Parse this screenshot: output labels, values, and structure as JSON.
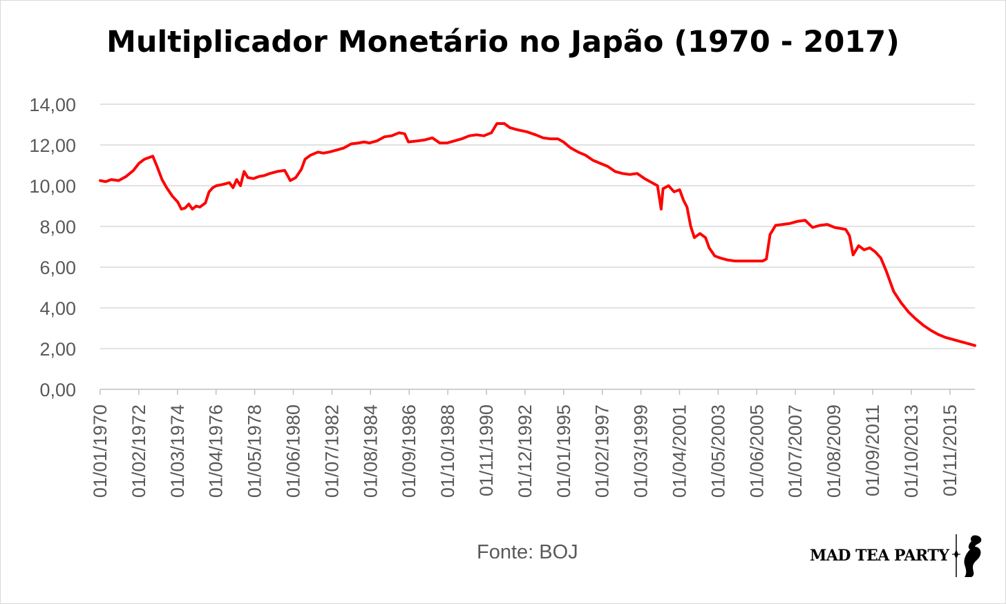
{
  "chart_data": {
    "type": "line",
    "title": "Multiplicador Monetário no Japão (1970 - 2017)",
    "source": "Fonte: BOJ",
    "ylim": [
      0,
      14
    ],
    "ytick_labels": [
      "0,00",
      "2,00",
      "4,00",
      "6,00",
      "8,00",
      "10,00",
      "12,00",
      "14,00"
    ],
    "xtick_labels": [
      "01/01/1970",
      "01/02/1972",
      "01/03/1974",
      "01/04/1976",
      "01/05/1978",
      "01/06/1980",
      "01/07/1982",
      "01/08/1984",
      "01/09/1986",
      "01/10/1988",
      "01/11/1990",
      "01/12/1992",
      "01/01/1995",
      "01/02/1997",
      "01/03/1999",
      "01/04/2001",
      "01/05/2003",
      "01/06/2005",
      "01/07/2007",
      "01/08/2009",
      "01/09/2011",
      "01/10/2013",
      "01/11/2015"
    ],
    "xlim": [
      1970.0,
      2017.4
    ],
    "grid": true,
    "legend": "none",
    "line_color": "#ff0000",
    "series": [
      {
        "x": [
          1970.0,
          1970.3,
          1970.6,
          1971.0,
          1971.4,
          1971.8,
          1972.1,
          1972.4,
          1972.7,
          1972.85,
          1973.1,
          1973.35,
          1973.6,
          1973.9,
          1974.2,
          1974.4,
          1974.6,
          1974.8,
          1975.0,
          1975.2,
          1975.4,
          1975.7,
          1975.9,
          1976.1,
          1976.3,
          1976.6,
          1977.0,
          1977.2,
          1977.4,
          1977.6,
          1977.8,
          1978.0,
          1978.3,
          1978.6,
          1978.9,
          1979.2,
          1979.6,
          1980.0,
          1980.3,
          1980.6,
          1980.9,
          1981.1,
          1981.4,
          1981.8,
          1982.1,
          1982.4,
          1982.8,
          1983.2,
          1983.6,
          1984.0,
          1984.3,
          1984.6,
          1985.0,
          1985.4,
          1985.8,
          1986.2,
          1986.5,
          1986.7,
          1987.2,
          1987.6,
          1988.0,
          1988.4,
          1988.8,
          1989.2,
          1989.6,
          1990.0,
          1990.4,
          1990.8,
          1991.2,
          1991.5,
          1991.9,
          1992.2,
          1992.6,
          1993.1,
          1993.6,
          1994.0,
          1994.4,
          1994.8,
          1995.1,
          1995.5,
          1995.9,
          1996.3,
          1996.7,
          1997.1,
          1997.5,
          1997.9,
          1998.3,
          1998.7,
          1999.1,
          1999.5,
          1999.9,
          2000.2,
          2000.4,
          2000.5,
          2000.8,
          2001.1,
          2001.4,
          2001.6,
          2001.8,
          2002.0,
          2002.2,
          2002.5,
          2002.8,
          2003.0,
          2003.3,
          2003.6,
          2004.0,
          2004.4,
          2004.8,
          2005.2,
          2005.6,
          2005.9,
          2006.1,
          2006.3,
          2006.6,
          2007.0,
          2007.4,
          2007.8,
          2008.2,
          2008.6,
          2009.0,
          2009.4,
          2009.8,
          2010.1,
          2010.4,
          2010.6,
          2010.8,
          2011.1,
          2011.4,
          2011.7,
          2012.0,
          2012.3,
          2012.6,
          2013.0,
          2013.4,
          2013.8,
          2014.2,
          2014.6,
          2015.0,
          2015.4,
          2015.8,
          2016.2,
          2016.6,
          2017.0,
          2017.4
        ],
        "values": [
          10.25,
          10.2,
          10.3,
          10.25,
          10.45,
          10.75,
          11.1,
          11.3,
          11.4,
          11.45,
          10.9,
          10.3,
          9.9,
          9.5,
          9.2,
          8.85,
          8.9,
          9.1,
          8.85,
          9.0,
          8.95,
          9.15,
          9.7,
          9.9,
          10.0,
          10.05,
          10.15,
          9.9,
          10.3,
          10.0,
          10.7,
          10.4,
          10.35,
          10.45,
          10.5,
          10.6,
          10.7,
          10.75,
          10.25,
          10.4,
          10.8,
          11.3,
          11.5,
          11.65,
          11.6,
          11.65,
          11.75,
          11.85,
          12.05,
          12.1,
          12.15,
          12.1,
          12.2,
          12.4,
          12.45,
          12.6,
          12.55,
          12.15,
          12.2,
          12.25,
          12.35,
          12.1,
          12.1,
          12.2,
          12.3,
          12.45,
          12.5,
          12.45,
          12.6,
          13.05,
          13.05,
          12.85,
          12.75,
          12.65,
          12.5,
          12.35,
          12.3,
          12.3,
          12.15,
          11.85,
          11.65,
          11.5,
          11.25,
          11.1,
          10.95,
          10.7,
          10.6,
          10.55,
          10.6,
          10.35,
          10.15,
          10.0,
          8.85,
          9.85,
          10.0,
          9.7,
          9.8,
          9.3,
          8.95,
          8.0,
          7.45,
          7.65,
          7.45,
          6.95,
          6.55,
          6.45,
          6.35,
          6.3,
          6.3,
          6.3,
          6.3,
          6.3,
          6.4,
          7.6,
          8.05,
          8.1,
          8.15,
          8.25,
          8.3,
          7.95,
          8.05,
          8.1,
          7.95,
          7.9,
          7.85,
          7.55,
          6.6,
          7.05,
          6.85,
          6.95,
          6.75,
          6.45,
          5.8,
          4.8,
          4.25,
          3.8,
          3.45,
          3.15,
          2.9,
          2.7,
          2.55,
          2.45,
          2.35,
          2.25,
          2.15
        ]
      }
    ]
  },
  "logo": {
    "text": "MAD TEA PARTY",
    "icon": "rabbit-silhouette-icon"
  }
}
